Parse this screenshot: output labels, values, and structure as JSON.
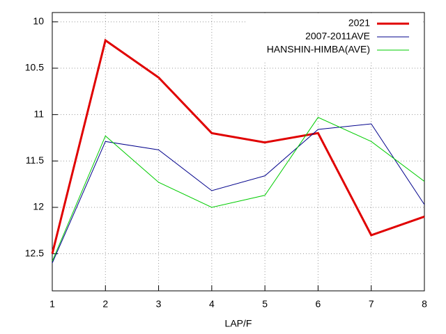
{
  "chart_data": {
    "type": "line",
    "x_label": "LAP/F",
    "x": [
      1,
      2,
      3,
      4,
      5,
      6,
      7,
      8
    ],
    "xlim": [
      1,
      8
    ],
    "xticks": [
      1,
      2,
      3,
      4,
      5,
      6,
      7,
      8
    ],
    "ylim": [
      9.9,
      12.9
    ],
    "yticks": [
      10,
      10.5,
      11,
      11.5,
      12,
      12.5
    ],
    "y_reversed": true,
    "grid": true,
    "legend": "top-right",
    "series": [
      {
        "name": "2021",
        "color": "#e00000",
        "width": 3,
        "values": [
          12.5,
          10.2,
          10.6,
          11.2,
          11.3,
          11.2,
          12.3,
          12.1
        ]
      },
      {
        "name": "2007-2011AVE",
        "color": "#00008b",
        "width": 1,
        "values": [
          12.6,
          11.29,
          11.38,
          11.82,
          11.66,
          11.16,
          11.1,
          11.97
        ]
      },
      {
        "name": "HANSHIN-HIMBA(AVE)",
        "color": "#00cc00",
        "width": 1,
        "values": [
          12.58,
          11.23,
          11.73,
          12.0,
          11.87,
          11.03,
          11.29,
          11.72
        ]
      }
    ]
  }
}
